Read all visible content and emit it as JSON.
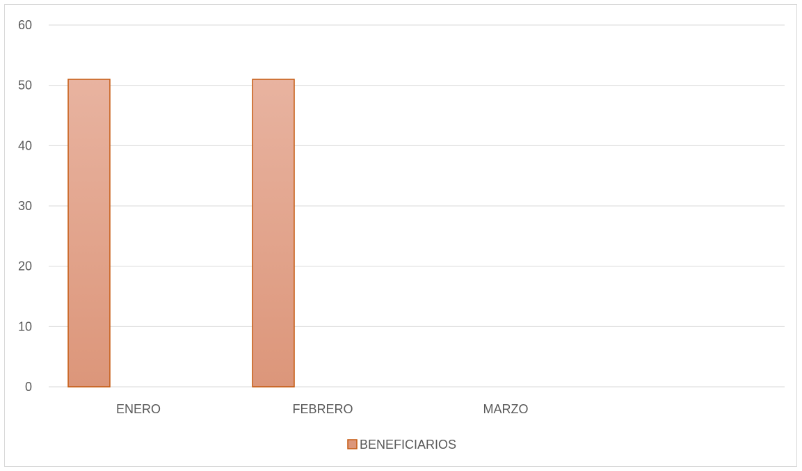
{
  "chart_data": {
    "type": "bar",
    "categories": [
      "ENERO",
      "FEBRERO",
      "MARZO"
    ],
    "series": [
      {
        "name": "BENEFICIARIOS",
        "values": [
          51,
          51,
          0
        ]
      }
    ],
    "ylim": [
      0,
      60
    ],
    "yticks": [
      "0",
      "10",
      "20",
      "30",
      "40",
      "50",
      "60"
    ],
    "grid": true,
    "legend_position": "bottom"
  },
  "colors": {
    "bar_fill_top": "#e8b3a0",
    "bar_fill_bottom": "#dc967a",
    "bar_stroke": "#c55a11",
    "grid": "#d9d9d9",
    "text": "#595959"
  }
}
